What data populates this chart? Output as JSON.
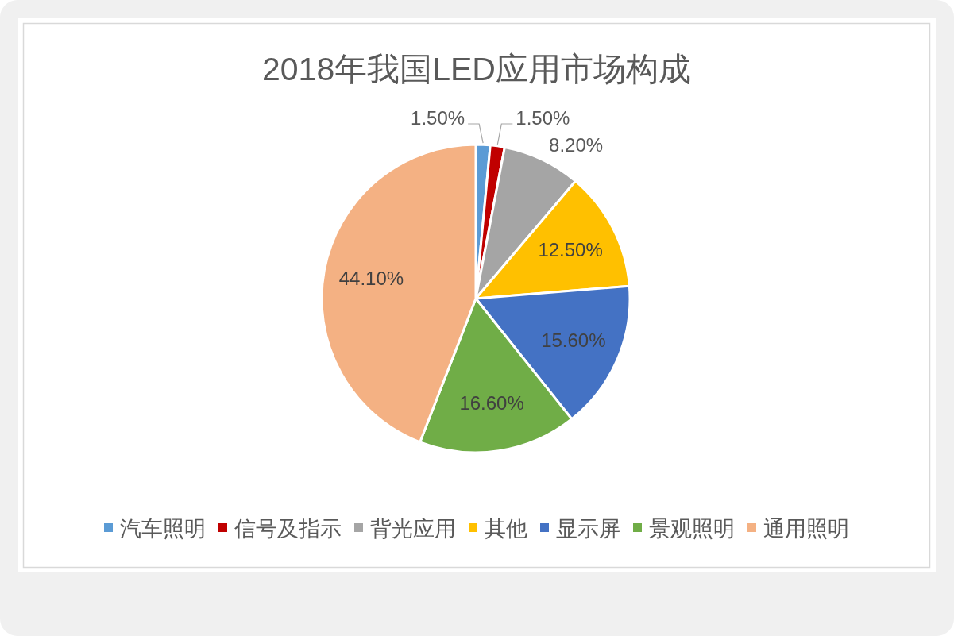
{
  "chart_data": {
    "type": "pie",
    "title": "2018年我国LED应用市场构成",
    "categories": [
      "汽车照明",
      "信号及指示",
      "背光应用",
      "其他",
      "显示屏",
      "景观照明",
      "通用照明"
    ],
    "values": [
      1.5,
      1.5,
      8.2,
      12.5,
      15.6,
      16.6,
      44.1
    ],
    "colors": [
      "#5b9bd5",
      "#c00000",
      "#a5a5a5",
      "#ffc000",
      "#4472c4",
      "#70ad47",
      "#f4b183"
    ],
    "value_labels": [
      "1.50%",
      "1.50%",
      "8.20%",
      "12.50%",
      "15.60%",
      "16.60%",
      "44.10%"
    ],
    "legend": "bottom"
  }
}
